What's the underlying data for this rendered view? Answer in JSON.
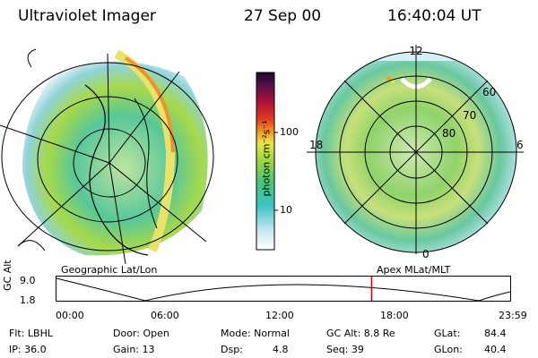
{
  "header": {
    "instrument": "Ultraviolet Imager",
    "date": "27 Sep 00",
    "time": "16:40:04 UT"
  },
  "left_panel": {
    "caption": "Geographic Lat/Lon"
  },
  "right_panel": {
    "caption": "Apex MLat/MLT",
    "mlt_labels": {
      "top": "12",
      "left": "18",
      "right": "6",
      "bottom": "0"
    },
    "mlat_labels": [
      "60",
      "70",
      "80"
    ]
  },
  "colorbar": {
    "unit_label": "photon cm⁻²s⁻¹",
    "ticks": [
      "100",
      "10"
    ]
  },
  "altitude_plot": {
    "ylabel": "GC Alt",
    "yticks": [
      "9.0",
      "1.8"
    ],
    "xticks": [
      "00:00",
      "06:00",
      "12:00",
      "18:00",
      "23:59"
    ],
    "current_time_fraction": 0.6945,
    "marker_color": "#e00000"
  },
  "footer": {
    "flt": "Flt: LBHL",
    "ip": "IP: 36.0",
    "door": "Door: Open",
    "gain": "Gain: 13",
    "mode": "Mode: Normal",
    "dsp_label": "Dsp:",
    "dsp_value": "4.8",
    "gc_alt": "GC Alt: 8.8 Re",
    "seq": "Seq: 39",
    "glat_label": "GLat:",
    "glat_value": "84.4",
    "glon_label": "GLon:",
    "glon_value": "40.4"
  }
}
